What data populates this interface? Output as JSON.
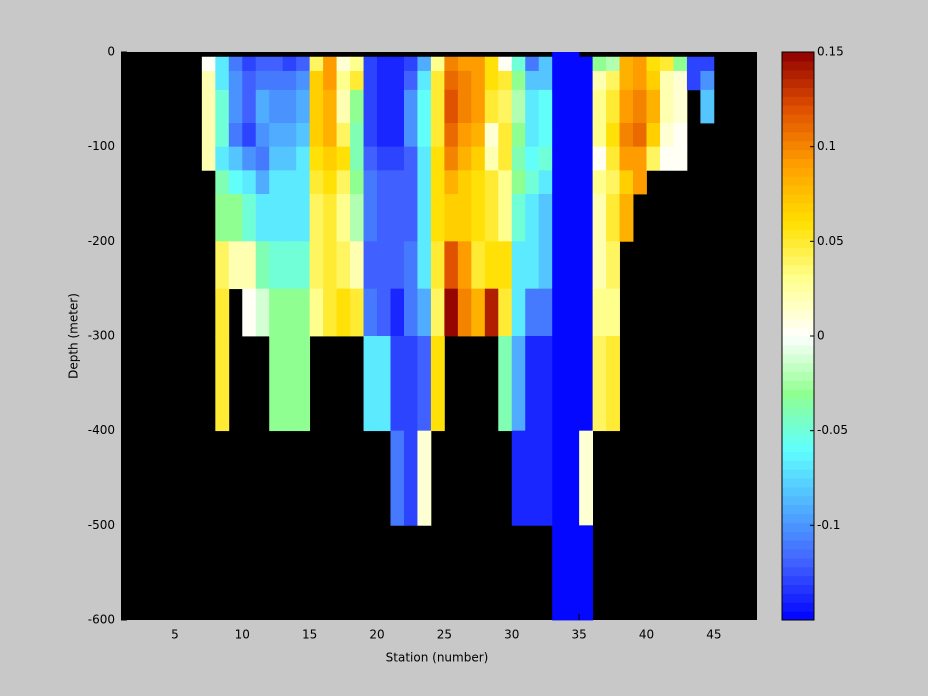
{
  "chart_data": {
    "type": "heatmap",
    "xlabel": "Station (number)",
    "ylabel": "Depth (meter)",
    "xlim": [
      1,
      48.2
    ],
    "ylim": [
      -600,
      0
    ],
    "xticks": [
      5,
      10,
      15,
      20,
      25,
      30,
      35,
      40,
      45
    ],
    "yticks": [
      -600,
      -500,
      -400,
      -300,
      -200,
      -100,
      0
    ],
    "clim": [
      -0.15,
      0.15
    ],
    "cticks": [
      -0.1,
      -0.05,
      0,
      0.05,
      0.1,
      0.15
    ],
    "colormap": [
      "#0000ff",
      "#4060ff",
      "#50b0ff",
      "#60ffff",
      "#90ff90",
      "#ffffff",
      "#ffff90",
      "#ffe000",
      "#ffa000",
      "#e05000",
      "#900000"
    ],
    "background": "#000000",
    "x": [
      7,
      8,
      9,
      10,
      11,
      12,
      13,
      14,
      15,
      16,
      17,
      18,
      19,
      20,
      21,
      22,
      23,
      24,
      25,
      26,
      27,
      28,
      29,
      30,
      31,
      32,
      33,
      34,
      35,
      36,
      37,
      38,
      39,
      40,
      41,
      42,
      43,
      44,
      45
    ],
    "y": [
      0,
      -5,
      -20,
      -40,
      -75,
      -100,
      -125,
      -150,
      -200,
      -250,
      -300,
      -400,
      -500,
      -600
    ],
    "z": [
      [
        null,
        0,
        0.02,
        0.02,
        0.02,
        0.02,
        null,
        null,
        null,
        null,
        null,
        null,
        null
      ],
      [
        null,
        -0.07,
        -0.07,
        -0.05,
        -0.05,
        -0.07,
        -0.04,
        -0.03,
        0.04,
        0.05,
        0.05,
        null,
        null
      ],
      [
        null,
        -0.11,
        -0.1,
        -0.1,
        -0.11,
        -0.08,
        -0.06,
        -0.03,
        0.02,
        null,
        null,
        null,
        null
      ],
      [
        null,
        -0.13,
        -0.12,
        -0.12,
        -0.13,
        -0.1,
        -0.07,
        -0.05,
        0.02,
        0,
        null,
        null,
        null
      ],
      [
        null,
        -0.12,
        -0.11,
        -0.09,
        -0.1,
        -0.11,
        -0.09,
        -0.07,
        -0.04,
        -0.01,
        null,
        null,
        null
      ],
      [
        null,
        -0.12,
        -0.11,
        -0.1,
        -0.09,
        -0.08,
        -0.07,
        -0.07,
        -0.05,
        -0.03,
        -0.03,
        null,
        null
      ],
      [
        null,
        -0.13,
        -0.11,
        -0.1,
        -0.09,
        -0.08,
        -0.07,
        -0.07,
        -0.05,
        -0.03,
        -0.03,
        null,
        null
      ],
      [
        null,
        -0.12,
        -0.1,
        -0.09,
        -0.08,
        -0.07,
        -0.07,
        -0.07,
        -0.05,
        -0.03,
        -0.03,
        null,
        null
      ],
      [
        null,
        0.04,
        0.07,
        0.07,
        0.07,
        0.06,
        0.05,
        0.04,
        0.04,
        0.03,
        null,
        null,
        null
      ],
      [
        null,
        0.09,
        0.09,
        0.08,
        0.08,
        0.07,
        0.06,
        0.05,
        0.05,
        0.05,
        null,
        null,
        null
      ],
      [
        null,
        0.01,
        0.03,
        0.02,
        0.04,
        0.06,
        0.04,
        0.03,
        0.04,
        0.06,
        null,
        null,
        null
      ],
      [
        null,
        0.03,
        0.05,
        -0.03,
        -0.04,
        -0.04,
        -0.03,
        -0.02,
        0.02,
        0.05,
        null,
        null,
        null
      ],
      [
        null,
        -0.13,
        -0.13,
        -0.13,
        -0.13,
        -0.12,
        -0.11,
        -0.11,
        -0.12,
        -0.11,
        -0.07,
        null,
        null
      ],
      [
        null,
        -0.14,
        -0.14,
        -0.14,
        -0.14,
        -0.13,
        -0.12,
        -0.12,
        -0.12,
        -0.12,
        -0.07,
        null,
        null
      ],
      [
        null,
        -0.14,
        -0.14,
        -0.14,
        -0.14,
        -0.13,
        -0.12,
        -0.12,
        -0.12,
        -0.14,
        -0.13,
        -0.11,
        null
      ],
      [
        null,
        -0.13,
        -0.12,
        -0.1,
        -0.1,
        -0.12,
        -0.12,
        -0.12,
        -0.11,
        -0.11,
        -0.13,
        -0.13,
        null
      ],
      [
        null,
        -0.09,
        -0.07,
        -0.06,
        -0.06,
        -0.07,
        -0.07,
        -0.07,
        -0.07,
        -0.09,
        -0.12,
        0.01,
        null
      ],
      [
        null,
        0.03,
        0.05,
        0.05,
        0.05,
        0.06,
        0.06,
        0.06,
        0.05,
        0.04,
        0.06,
        null,
        null
      ],
      [
        null,
        0.1,
        0.11,
        0.12,
        0.11,
        0.1,
        0.08,
        0.07,
        0.12,
        0.15,
        null,
        null,
        null
      ],
      [
        null,
        0.09,
        0.1,
        0.1,
        0.09,
        0.08,
        0.07,
        0.07,
        0.09,
        0.1,
        null,
        null,
        null
      ],
      [
        null,
        0.09,
        0.09,
        0.09,
        0.08,
        0.07,
        0.06,
        0.06,
        0.05,
        0.08,
        null,
        null,
        null
      ],
      [
        null,
        0.06,
        0.06,
        0.05,
        0.01,
        0.02,
        0.05,
        0.05,
        0.06,
        0.14,
        null,
        null,
        null
      ],
      [
        null,
        0,
        0.05,
        0.04,
        0.05,
        0.05,
        0.03,
        0.03,
        0.06,
        0.05,
        -0.04,
        null,
        null
      ],
      [
        null,
        -0.05,
        -0.03,
        -0.02,
        -0.03,
        -0.04,
        -0.03,
        -0.05,
        -0.07,
        -0.07,
        -0.09,
        -0.14,
        null
      ],
      [
        null,
        -0.11,
        -0.08,
        -0.07,
        -0.07,
        -0.06,
        -0.05,
        -0.07,
        -0.07,
        -0.11,
        -0.14,
        -0.14,
        null
      ],
      [
        null,
        -0.08,
        -0.08,
        -0.06,
        -0.06,
        -0.05,
        -0.07,
        -0.08,
        -0.08,
        -0.11,
        -0.14,
        -0.14,
        null
      ],
      [
        -0.15,
        -0.15,
        -0.15,
        -0.15,
        -0.15,
        -0.15,
        -0.15,
        -0.15,
        -0.15,
        -0.15,
        -0.15,
        -0.15,
        -0.15
      ],
      [
        -0.15,
        -0.15,
        -0.15,
        -0.15,
        -0.15,
        -0.15,
        -0.15,
        -0.15,
        -0.15,
        -0.15,
        -0.15,
        -0.15,
        -0.15
      ],
      [
        null,
        -0.15,
        -0.15,
        -0.15,
        -0.15,
        -0.15,
        -0.15,
        -0.15,
        -0.15,
        -0.15,
        -0.15,
        0.01,
        -0.15
      ],
      [
        null,
        -0.03,
        0.02,
        0.03,
        0.03,
        0,
        0.03,
        0.02,
        0.02,
        0.03,
        0.04,
        null,
        null
      ],
      [
        null,
        -0.02,
        0.04,
        0.05,
        0.06,
        0.05,
        0.04,
        0.05,
        0.04,
        0.03,
        0.05,
        null,
        null
      ],
      [
        null,
        0.08,
        0.08,
        0.09,
        0.1,
        0.09,
        0.07,
        0.08,
        null,
        null,
        null,
        null,
        null
      ],
      [
        null,
        0.09,
        0.09,
        0.1,
        0.11,
        0.09,
        0.09,
        null,
        null,
        null,
        null,
        null,
        null
      ],
      [
        null,
        0.06,
        0.07,
        0.08,
        0.07,
        0.04,
        null,
        null,
        null,
        null,
        null,
        null,
        null
      ],
      [
        null,
        0.05,
        0.02,
        0.02,
        0.01,
        0,
        null,
        null,
        null,
        null,
        null,
        null,
        null
      ],
      [
        null,
        -0.03,
        0.01,
        0.01,
        0,
        0,
        null,
        null,
        null,
        null,
        null,
        null,
        null
      ],
      [
        null,
        -0.13,
        -0.13,
        null,
        null,
        null,
        null,
        null,
        null,
        null,
        null,
        null,
        null
      ],
      [
        null,
        -0.13,
        -0.1,
        -0.08,
        null,
        null,
        null,
        null,
        null,
        null,
        null,
        null,
        null
      ]
    ]
  }
}
